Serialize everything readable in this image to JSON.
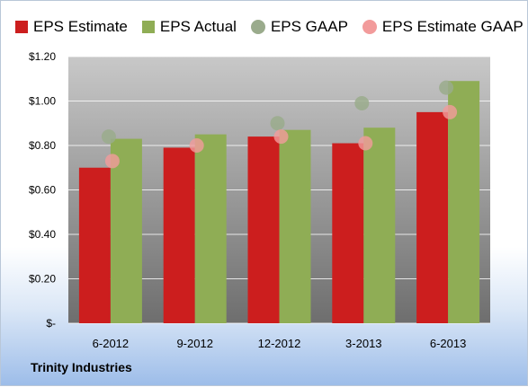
{
  "company": "Trinity Industries",
  "colors": {
    "estimate": "#cc1e1e",
    "actual": "#8fad55",
    "gaap": "#9aab8c",
    "estimate_gaap": "#f29b9b",
    "plot_bg_top": "#c8c8c8",
    "plot_bg_bottom": "#6e6e6e"
  },
  "chart_data": {
    "type": "bar",
    "categories": [
      "6-2012",
      "9-2012",
      "12-2012",
      "3-2013",
      "6-2013"
    ],
    "series": [
      {
        "name": "EPS Estimate",
        "kind": "bar",
        "values": [
          0.7,
          0.79,
          0.84,
          0.81,
          0.95
        ]
      },
      {
        "name": "EPS Actual",
        "kind": "bar",
        "values": [
          0.83,
          0.85,
          0.87,
          0.88,
          1.09
        ]
      },
      {
        "name": "EPS GAAP",
        "kind": "marker",
        "values": [
          0.84,
          null,
          0.9,
          0.99,
          1.06
        ]
      },
      {
        "name": "EPS Estimate GAAP",
        "kind": "marker",
        "values": [
          0.73,
          0.8,
          0.84,
          0.81,
          0.95
        ]
      }
    ],
    "ylim": [
      0,
      1.2
    ],
    "yticks": [
      0,
      0.2,
      0.4,
      0.6,
      0.8,
      1.0,
      1.2
    ],
    "ytick_labels": [
      "$-",
      "$0.20",
      "$0.40",
      "$0.60",
      "$0.80",
      "$1.00",
      "$1.20"
    ],
    "grid": true,
    "legend": "top"
  }
}
